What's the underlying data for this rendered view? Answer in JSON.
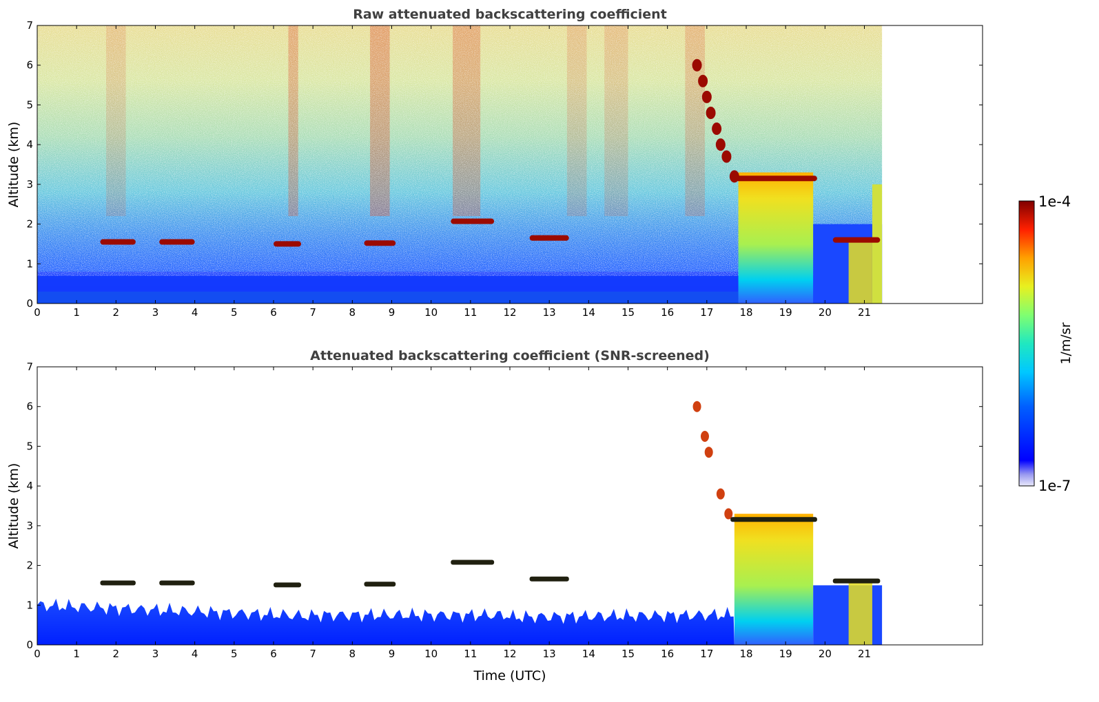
{
  "chart_data": [
    {
      "type": "heatmap",
      "title": "Raw attenuated backscattering coefficient",
      "xlabel": "",
      "ylabel": "Altitude (km)",
      "xlim": [
        0,
        24
      ],
      "ylim": [
        0,
        7
      ],
      "x_ticks": [
        0,
        1,
        2,
        3,
        4,
        5,
        6,
        7,
        8,
        9,
        10,
        11,
        12,
        13,
        14,
        15,
        16,
        17,
        18,
        19,
        20,
        21
      ],
      "y_ticks": [
        0,
        1,
        2,
        3,
        4,
        5,
        6,
        7
      ],
      "data_end_time": 21.45,
      "cloud_layers": [
        {
          "start": 1.6,
          "end": 2.5,
          "altitude": 1.55
        },
        {
          "start": 3.1,
          "end": 4.0,
          "altitude": 1.55
        },
        {
          "start": 6.0,
          "end": 6.7,
          "altitude": 1.5
        },
        {
          "start": 8.3,
          "end": 9.1,
          "altitude": 1.52
        },
        {
          "start": 10.5,
          "end": 11.6,
          "altitude": 2.07
        },
        {
          "start": 12.5,
          "end": 13.5,
          "altitude": 1.65
        },
        {
          "start": 17.6,
          "end": 19.8,
          "altitude": 3.15
        },
        {
          "start": 20.2,
          "end": 21.4,
          "altitude": 1.6
        }
      ],
      "colorscale": "jet"
    },
    {
      "type": "heatmap",
      "title": "Attenuated backscattering coefficient (SNR-screened)",
      "xlabel": "Time (UTC)",
      "ylabel": "Altitude (km)",
      "xlim": [
        0,
        24
      ],
      "ylim": [
        0,
        7
      ],
      "x_ticks": [
        0,
        1,
        2,
        3,
        4,
        5,
        6,
        7,
        8,
        9,
        10,
        11,
        12,
        13,
        14,
        15,
        16,
        17,
        18,
        19,
        20,
        21
      ],
      "y_ticks": [
        0,
        1,
        2,
        3,
        4,
        5,
        6,
        7
      ],
      "data_end_time": 21.45,
      "colorscale": "jet"
    }
  ],
  "colorbar": {
    "label": "1/m/sr",
    "max_label": "1e-4",
    "min_label": "1e-7"
  },
  "colors": {
    "title": "#404040",
    "frame": "#000000",
    "cloud": "#9b0a00",
    "boundary_layer": "#1a3cff"
  }
}
